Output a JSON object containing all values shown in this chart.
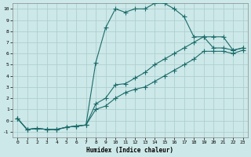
{
  "xlabel": "Humidex (Indice chaleur)",
  "background_color": "#cde8e8",
  "grid_color": "#afd0cf",
  "line_color": "#1a6b6b",
  "xlim": [
    -0.5,
    23.5
  ],
  "ylim": [
    -1.5,
    10.5
  ],
  "xticks": [
    0,
    1,
    2,
    3,
    4,
    5,
    6,
    7,
    8,
    9,
    10,
    11,
    12,
    13,
    14,
    15,
    16,
    17,
    18,
    19,
    20,
    21,
    22,
    23
  ],
  "yticks": [
    -1,
    0,
    1,
    2,
    3,
    4,
    5,
    6,
    7,
    8,
    9,
    10
  ],
  "line1_x": [
    0,
    1,
    2,
    3,
    4,
    5,
    6,
    7,
    8,
    9,
    10,
    11,
    12,
    13,
    14,
    15,
    16,
    17,
    18,
    19,
    20,
    21,
    22,
    23
  ],
  "line1_y": [
    0.2,
    -0.8,
    -0.7,
    -0.8,
    -0.8,
    -0.6,
    -0.5,
    -0.4,
    5.2,
    8.3,
    10.0,
    9.7,
    10.0,
    10.0,
    10.5,
    10.5,
    10.0,
    9.3,
    7.5,
    7.5,
    6.5,
    6.5,
    6.3,
    6.5
  ],
  "line2_x": [
    0,
    1,
    2,
    3,
    4,
    5,
    6,
    7,
    8,
    9,
    10,
    11,
    12,
    13,
    14,
    15,
    16,
    17,
    18,
    19,
    20,
    21,
    22,
    23
  ],
  "line2_y": [
    0.2,
    -0.8,
    -0.7,
    -0.8,
    -0.8,
    -0.6,
    -0.5,
    -0.4,
    1.5,
    2.0,
    3.2,
    3.3,
    3.8,
    4.3,
    5.0,
    5.5,
    6.0,
    6.5,
    7.0,
    7.5,
    7.5,
    7.5,
    6.3,
    6.5
  ],
  "line3_x": [
    0,
    1,
    2,
    3,
    4,
    5,
    6,
    7,
    8,
    9,
    10,
    11,
    12,
    13,
    14,
    15,
    16,
    17,
    18,
    19,
    20,
    21,
    22,
    23
  ],
  "line3_y": [
    0.2,
    -0.8,
    -0.7,
    -0.8,
    -0.8,
    -0.6,
    -0.5,
    -0.4,
    1.0,
    1.3,
    2.0,
    2.5,
    2.8,
    3.0,
    3.5,
    4.0,
    4.5,
    5.0,
    5.5,
    6.2,
    6.2,
    6.2,
    6.0,
    6.3
  ]
}
